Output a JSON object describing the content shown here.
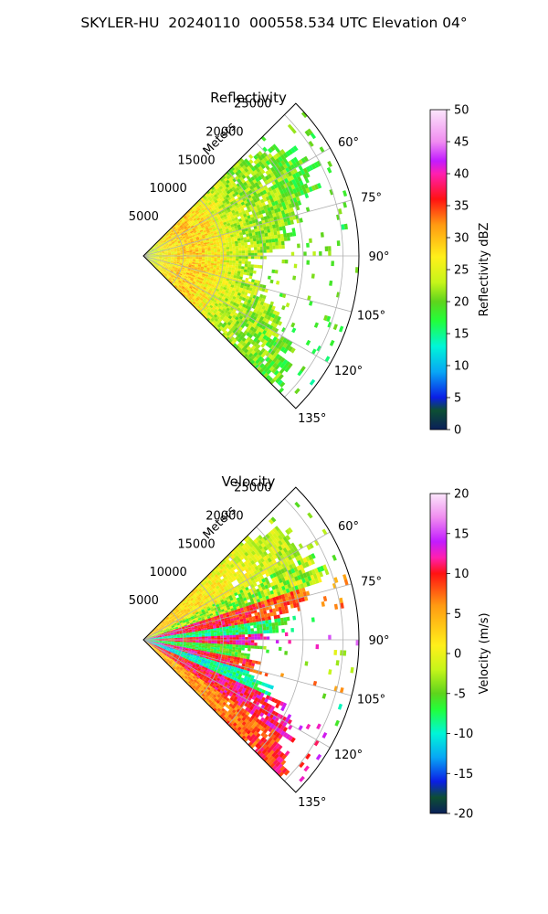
{
  "suptitle": "SKYLER-HU  20240110  000558.534 UTC Elevation 04°",
  "chart_data": [
    {
      "type": "heatmap",
      "title": "Reflectivity",
      "projection": "polar-sector",
      "theta_range_deg": [
        45,
        135
      ],
      "theta_ticks": [
        "60°",
        "75°",
        "90°",
        "105°",
        "120°",
        "135°"
      ],
      "theta_tick_values": [
        60,
        75,
        90,
        105,
        120,
        135
      ],
      "r_range": [
        0,
        27000
      ],
      "r_ticks": [
        "5000",
        "10000",
        "15000",
        "20000",
        "25000"
      ],
      "r_tick_values": [
        5000,
        10000,
        15000,
        20000,
        25000
      ],
      "r_label": "Meters",
      "grid": true,
      "colorbar": {
        "label": "Reflectivity dBZ",
        "min": 0,
        "max": 50,
        "ticks": [
          "0",
          "5",
          "10",
          "15",
          "20",
          "25",
          "30",
          "35",
          "40",
          "45",
          "50"
        ],
        "tick_values": [
          0,
          5,
          10,
          15,
          20,
          25,
          30,
          35,
          40,
          45,
          50
        ]
      },
      "colormap_stops": [
        {
          "v": 0,
          "c": "#0a1f5a"
        },
        {
          "v": 3,
          "c": "#0d4f33"
        },
        {
          "v": 5,
          "c": "#0a1ee6"
        },
        {
          "v": 9,
          "c": "#08a6f5"
        },
        {
          "v": 13,
          "c": "#00f5d8"
        },
        {
          "v": 17,
          "c": "#22ff3a"
        },
        {
          "v": 20,
          "c": "#5ed41c"
        },
        {
          "v": 23,
          "c": "#c6f51a"
        },
        {
          "v": 27,
          "c": "#fff01a"
        },
        {
          "v": 32,
          "c": "#ff9a12"
        },
        {
          "v": 36,
          "c": "#ff1212"
        },
        {
          "v": 40,
          "c": "#ff1fb0"
        },
        {
          "v": 42,
          "c": "#c21bff"
        },
        {
          "v": 45,
          "c": "#f08cf0"
        },
        {
          "v": 50,
          "c": "#fbe6fb"
        }
      ]
    },
    {
      "type": "heatmap",
      "title": "Velocity",
      "projection": "polar-sector",
      "theta_range_deg": [
        45,
        135
      ],
      "theta_ticks": [
        "60°",
        "75°",
        "90°",
        "105°",
        "120°",
        "135°"
      ],
      "theta_tick_values": [
        60,
        75,
        90,
        105,
        120,
        135
      ],
      "r_range": [
        0,
        27000
      ],
      "r_ticks": [
        "5000",
        "10000",
        "15000",
        "20000",
        "25000"
      ],
      "r_tick_values": [
        5000,
        10000,
        15000,
        20000,
        25000
      ],
      "r_label": "Meters",
      "grid": true,
      "colorbar": {
        "label": "Velocity (m/s)",
        "min": -20,
        "max": 20,
        "ticks": [
          "-20",
          "-15",
          "-10",
          "-5",
          "0",
          "5",
          "10",
          "15",
          "20"
        ],
        "tick_values": [
          -20,
          -15,
          -10,
          -5,
          0,
          5,
          10,
          15,
          20
        ]
      },
      "colormap_stops": [
        {
          "v": -20,
          "c": "#0a1f5a"
        },
        {
          "v": -18,
          "c": "#0d4f33"
        },
        {
          "v": -16,
          "c": "#0a1ee6"
        },
        {
          "v": -13,
          "c": "#08a6f5"
        },
        {
          "v": -10,
          "c": "#00f5d8"
        },
        {
          "v": -7,
          "c": "#22ff3a"
        },
        {
          "v": -5,
          "c": "#5ed41c"
        },
        {
          "v": -2,
          "c": "#c6f51a"
        },
        {
          "v": 1,
          "c": "#fff01a"
        },
        {
          "v": 6,
          "c": "#ff9a12"
        },
        {
          "v": 10,
          "c": "#ff1212"
        },
        {
          "v": 12,
          "c": "#ff1fb0"
        },
        {
          "v": 14,
          "c": "#c21bff"
        },
        {
          "v": 17,
          "c": "#f08cf0"
        },
        {
          "v": 20,
          "c": "#fbe6fb"
        }
      ]
    }
  ]
}
